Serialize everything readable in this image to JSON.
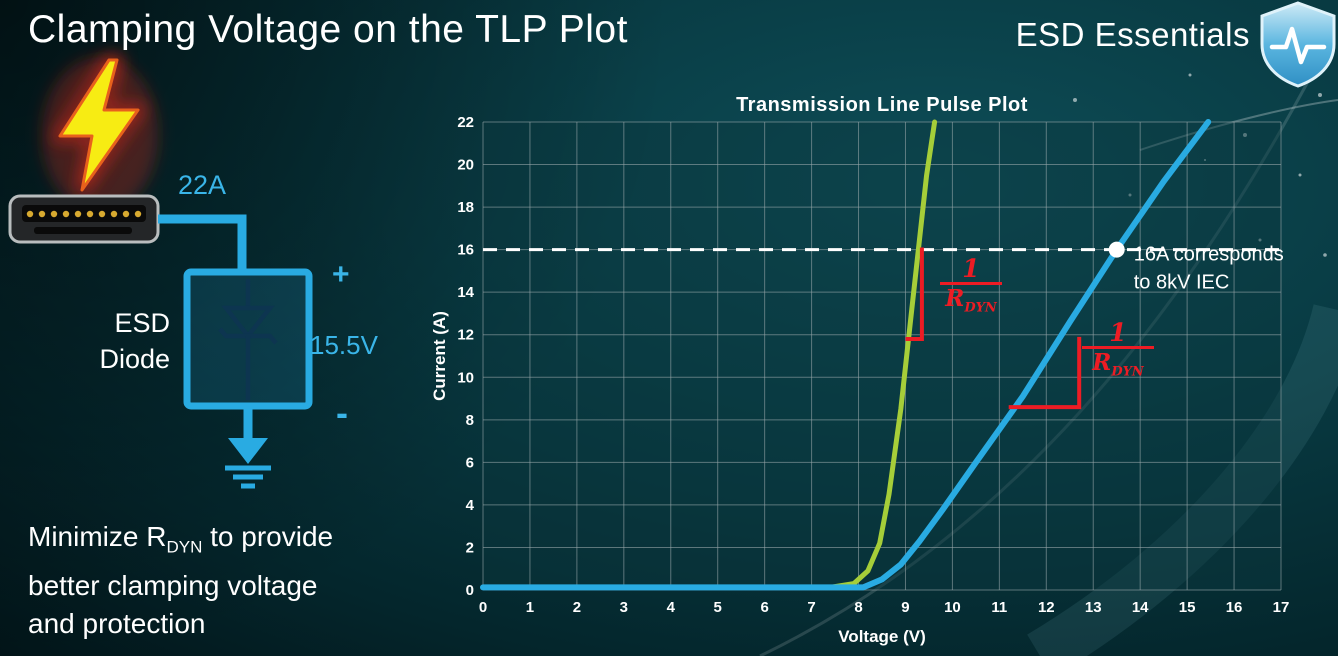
{
  "page": {
    "title": "Clamping Voltage on the TLP Plot",
    "brand": "ESD Essentials"
  },
  "diagram": {
    "surge_current": "22A",
    "device_line1": "ESD",
    "device_line2": "Diode",
    "plus": "+",
    "clamp_voltage": "15.5V",
    "minus": "-"
  },
  "note": {
    "line1_pre": "Minimize R",
    "line1_sub": "DYN",
    "line1_post": " to provide",
    "line2": "better clamping voltage",
    "line3": "and protection"
  },
  "chart_data": {
    "type": "line",
    "title": "Transmission Line Pulse Plot",
    "xlabel": "Voltage (V)",
    "ylabel": "Current (A)",
    "xlim": [
      0,
      17
    ],
    "ylim": [
      0,
      22
    ],
    "x_ticks": [
      0,
      1,
      2,
      3,
      4,
      5,
      6,
      7,
      8,
      9,
      10,
      11,
      12,
      13,
      14,
      15,
      16,
      17
    ],
    "y_ticks": [
      0,
      2,
      4,
      6,
      8,
      10,
      12,
      14,
      16,
      18,
      20,
      22
    ],
    "grid": true,
    "grid_color": "rgba(150,165,168,0.6)",
    "legend": "none",
    "series": [
      {
        "id": "low-rdyn-curve",
        "color": "#a6ce39",
        "width": 5,
        "points": [
          [
            0,
            0.12
          ],
          [
            7.4,
            0.12
          ],
          [
            7.9,
            0.3
          ],
          [
            8.2,
            0.9
          ],
          [
            8.45,
            2.2
          ],
          [
            8.65,
            4.5
          ],
          [
            8.9,
            8.5
          ],
          [
            9.15,
            13.5
          ],
          [
            9.45,
            19.5
          ],
          [
            9.62,
            22
          ]
        ]
      },
      {
        "id": "high-rdyn-curve",
        "color": "#29abe2",
        "width": 6,
        "points": [
          [
            0,
            0.12
          ],
          [
            8.1,
            0.12
          ],
          [
            8.5,
            0.5
          ],
          [
            8.9,
            1.2
          ],
          [
            9.3,
            2.3
          ],
          [
            9.8,
            3.8
          ],
          [
            10.5,
            6.0
          ],
          [
            11.5,
            9.1
          ],
          [
            12.5,
            12.6
          ],
          [
            13.5,
            16.0
          ],
          [
            14.5,
            19.2
          ],
          [
            15.45,
            22
          ]
        ]
      }
    ],
    "threshold_line": {
      "y": 16,
      "color": "#ffffff",
      "style": "dashed"
    },
    "marker": {
      "x": 13.5,
      "y": 16,
      "color": "#ffffff"
    },
    "annotations": {
      "iec_line1": "16A corresponds",
      "iec_line2": "to 8kV IEC",
      "rdyn_numerator": "1",
      "rdyn_r": "R",
      "rdyn_sub": "DYN",
      "accent_color": "#ed1c24"
    },
    "slope_indicators": [
      {
        "points": [
          [
            9.35,
            16.1
          ],
          [
            9.35,
            11.8
          ],
          [
            9.0,
            11.8
          ]
        ]
      },
      {
        "points": [
          [
            11.2,
            8.6
          ],
          [
            12.7,
            8.6
          ],
          [
            12.7,
            11.9
          ]
        ]
      }
    ]
  },
  "colors": {
    "accent_blue": "#29abe2",
    "accent_green": "#a6ce39",
    "accent_red": "#ed1c24",
    "background_teal": "#083a42"
  }
}
